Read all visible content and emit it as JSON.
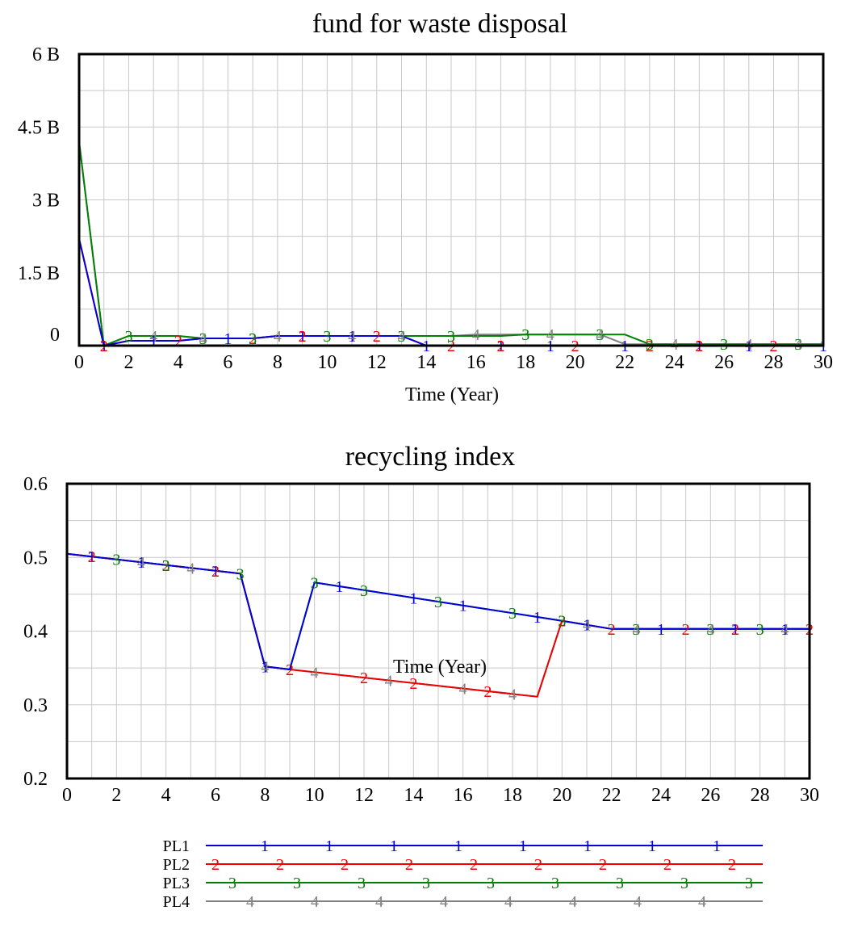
{
  "series_styles": [
    {
      "id": "1",
      "color": "#0000dd"
    },
    {
      "id": "2",
      "color": "#ee0000"
    },
    {
      "id": "3",
      "color": "#008000"
    },
    {
      "id": "4",
      "color": "#808080"
    }
  ],
  "chart_data": [
    {
      "type": "line",
      "title": "fund for waste disposal",
      "xlabel": "Time (Year)",
      "ylabel": "",
      "xlim": [
        0,
        30
      ],
      "ylim": [
        0,
        6
      ],
      "xticks": [
        0,
        2,
        4,
        6,
        8,
        10,
        12,
        14,
        16,
        18,
        20,
        22,
        24,
        26,
        28,
        30
      ],
      "yticks": [
        0,
        1.5,
        3,
        4.5,
        6
      ],
      "ytick_labels": [
        "0",
        "1.5 B",
        "3 B",
        "4.5 B",
        "6 B"
      ],
      "grid": true,
      "series": [
        {
          "id": "4",
          "x": [
            0,
            1,
            2,
            3,
            4,
            5,
            6,
            7,
            8,
            9,
            10,
            11,
            12,
            13,
            14,
            15,
            16,
            17,
            18,
            19,
            20,
            21,
            22,
            23,
            24,
            25,
            26,
            27,
            28,
            29,
            30
          ],
          "y": [
            4.2,
            0,
            0.2,
            0.2,
            0.2,
            0.15,
            0.15,
            0.15,
            0.2,
            0.2,
            0.2,
            0.2,
            0.2,
            0.2,
            0.2,
            0.2,
            0.23,
            0.23,
            0.23,
            0.23,
            0.23,
            0.23,
            0.03,
            0.03,
            0.03,
            0.03,
            0.03,
            0.03,
            0.03,
            0.03,
            0.03
          ]
        },
        {
          "id": "3",
          "x": [
            0,
            1,
            2,
            3,
            4,
            5,
            6,
            7,
            8,
            9,
            10,
            11,
            12,
            13,
            14,
            15,
            16,
            17,
            18,
            19,
            20,
            21,
            22,
            23,
            24,
            25,
            26,
            27,
            28,
            29,
            30
          ],
          "y": [
            4.2,
            0,
            0.2,
            0.2,
            0.2,
            0.15,
            0.15,
            0.15,
            0.2,
            0.2,
            0.2,
            0.2,
            0.2,
            0.2,
            0.2,
            0.2,
            0.2,
            0.2,
            0.23,
            0.23,
            0.23,
            0.23,
            0.23,
            0.03,
            0.03,
            0.03,
            0.03,
            0.03,
            0.03,
            0.03,
            0.03
          ]
        },
        {
          "id": "2",
          "x": [
            0,
            1,
            2,
            3,
            4,
            5,
            6,
            7,
            8,
            9,
            10,
            11,
            12,
            13,
            14,
            15,
            16,
            17,
            18,
            19,
            20,
            21,
            22,
            23,
            24,
            25,
            26,
            27,
            28,
            29,
            30
          ],
          "y": [
            2.2,
            0,
            0.1,
            0.1,
            0.1,
            0.15,
            0.15,
            0.15,
            0.2,
            0.2,
            0.2,
            0.2,
            0.2,
            0.2,
            0,
            0,
            0,
            0,
            0,
            0,
            0,
            0,
            0,
            0,
            0,
            0,
            0,
            0,
            0,
            0,
            0
          ]
        },
        {
          "id": "1",
          "x": [
            0,
            1,
            2,
            3,
            4,
            5,
            6,
            7,
            8,
            9,
            10,
            11,
            12,
            13,
            14,
            15,
            16,
            17,
            18,
            19,
            20,
            21,
            22,
            23,
            24,
            25,
            26,
            27,
            28,
            29,
            30
          ],
          "y": [
            2.2,
            0,
            0.1,
            0.1,
            0.1,
            0.15,
            0.15,
            0.15,
            0.2,
            0.2,
            0.2,
            0.2,
            0.2,
            0.2,
            0,
            0,
            0,
            0,
            0,
            0,
            0,
            0,
            0,
            0,
            0,
            0,
            0,
            0,
            0,
            0,
            0
          ]
        }
      ],
      "markers": [
        {
          "id": "1",
          "x": [
            1,
            3,
            6,
            9,
            11,
            14,
            17,
            19,
            22,
            25,
            27,
            30
          ]
        },
        {
          "id": "2",
          "x": [
            1,
            4,
            7,
            9,
            12,
            15,
            17,
            20,
            23,
            25,
            28
          ]
        },
        {
          "id": "3",
          "x": [
            2,
            5,
            7,
            10,
            13,
            15,
            18,
            21,
            23,
            26,
            29
          ]
        },
        {
          "id": "4",
          "x": [
            3,
            5,
            8,
            11,
            13,
            16,
            19,
            21,
            24,
            27,
            29
          ]
        }
      ]
    },
    {
      "type": "line",
      "title": "recycling index",
      "xlabel": "Time (Year)",
      "ylabel": "",
      "xlim": [
        0,
        30
      ],
      "ylim": [
        0.2,
        0.6
      ],
      "xticks": [
        0,
        2,
        4,
        6,
        8,
        10,
        12,
        14,
        16,
        18,
        20,
        22,
        24,
        26,
        28,
        30
      ],
      "yticks": [
        0.2,
        0.3,
        0.4,
        0.5,
        0.6
      ],
      "ytick_labels": [
        "0.2",
        "0.3",
        "0.4",
        "0.5",
        "0.6"
      ],
      "grid": true,
      "series": [
        {
          "id": "4",
          "x": [
            0,
            7,
            8,
            9,
            19,
            20,
            22,
            30
          ],
          "y": [
            0.505,
            0.478,
            0.352,
            0.348,
            0.311,
            0.414,
            0.403,
            0.403
          ]
        },
        {
          "id": "3",
          "x": [
            0,
            7,
            8,
            9,
            10,
            20,
            22,
            30
          ],
          "y": [
            0.505,
            0.478,
            0.352,
            0.348,
            0.466,
            0.414,
            0.403,
            0.403
          ]
        },
        {
          "id": "2",
          "x": [
            0,
            7,
            8,
            9,
            19,
            20,
            22,
            30
          ],
          "y": [
            0.505,
            0.478,
            0.352,
            0.348,
            0.311,
            0.414,
            0.403,
            0.403
          ]
        },
        {
          "id": "1",
          "x": [
            0,
            7,
            8,
            9,
            10,
            20,
            22,
            30
          ],
          "y": [
            0.505,
            0.478,
            0.352,
            0.348,
            0.466,
            0.414,
            0.403,
            0.403
          ]
        }
      ],
      "markers": [
        {
          "id": "1",
          "x": [
            1,
            3,
            6,
            8,
            11,
            14,
            16,
            19,
            21,
            24,
            27,
            29
          ]
        },
        {
          "id": "2",
          "x": [
            1,
            4,
            6,
            9,
            12,
            14,
            17,
            20,
            22,
            25,
            27,
            30
          ]
        },
        {
          "id": "3",
          "x": [
            2,
            4,
            7,
            10,
            12,
            15,
            18,
            20,
            23,
            26,
            28
          ]
        },
        {
          "id": "4",
          "x": [
            3,
            5,
            8,
            10,
            13,
            16,
            18,
            21,
            23,
            26,
            29
          ]
        }
      ]
    }
  ],
  "legend": {
    "entries": [
      {
        "id": "1",
        "label": "PL1"
      },
      {
        "id": "2",
        "label": "PL2"
      },
      {
        "id": "3",
        "label": "PL3"
      },
      {
        "id": "4",
        "label": "PL4"
      }
    ]
  }
}
